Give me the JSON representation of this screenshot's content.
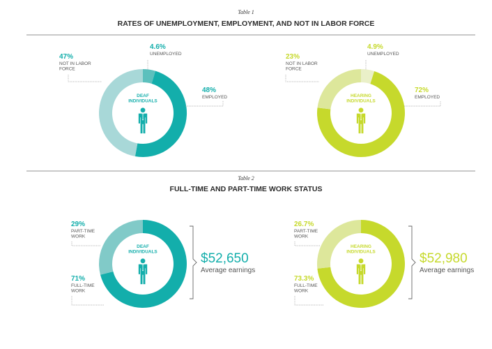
{
  "colors": {
    "deaf_dark": "#13aeab",
    "deaf_light": "#a8d8d8",
    "deaf_mid": "#81cac8",
    "deaf_sliver": "#5cc0bd",
    "hearing_dark": "#c6d92c",
    "hearing_light": "#dde79b",
    "hearing_sliver": "#eaf0c8",
    "text": "#2b2b2b",
    "rule": "#6d6d6d"
  },
  "icon": "person-icon",
  "chart_data": [
    {
      "type": "pie",
      "table_label": "Table 1",
      "title": "RATES OF UNEMPLOYMENT, EMPLOYMENT, AND NOT IN LABOR FORCE",
      "charts": [
        {
          "group": "DEAF INDIVIDUALS",
          "group_lines": [
            "DEAF",
            "INDIVIDUALS"
          ],
          "slices": [
            {
              "label": "UNEMPLOYED",
              "label_lines": [
                "UNEMPLOYED"
              ],
              "value": 4.6,
              "pct_text": "4.6%"
            },
            {
              "label": "EMPLOYED",
              "label_lines": [
                "EMPLOYED"
              ],
              "value": 48,
              "pct_text": "48%"
            },
            {
              "label": "NOT IN LABOR FORCE",
              "label_lines": [
                "NOT IN LABOR",
                "FORCE"
              ],
              "value": 47,
              "pct_text": "47%"
            }
          ]
        },
        {
          "group": "HEARING INDIVIDUALS",
          "group_lines": [
            "HEARING",
            "INDIVIDUALS"
          ],
          "slices": [
            {
              "label": "UNEMPLOYED",
              "label_lines": [
                "UNEMPLOYED"
              ],
              "value": 4.9,
              "pct_text": "4.9%"
            },
            {
              "label": "EMPLOYED",
              "label_lines": [
                "EMPLOYED"
              ],
              "value": 72,
              "pct_text": "72%"
            },
            {
              "label": "NOT IN LABOR FORCE",
              "label_lines": [
                "NOT IN LABOR",
                "FORCE"
              ],
              "value": 23,
              "pct_text": "23%"
            }
          ]
        }
      ]
    },
    {
      "type": "pie",
      "table_label": "Table 2",
      "title": "FULL-TIME AND PART-TIME WORK STATUS",
      "charts": [
        {
          "group": "DEAF INDIVIDUALS",
          "group_lines": [
            "DEAF",
            "INDIVIDUALS"
          ],
          "slices": [
            {
              "label": "FULL-TIME WORK",
              "label_lines": [
                "FULL-TIME",
                "WORK"
              ],
              "value": 71,
              "pct_text": "71%"
            },
            {
              "label": "PART-TIME WORK",
              "label_lines": [
                "PART-TIME",
                "WORK"
              ],
              "value": 29,
              "pct_text": "29%"
            }
          ],
          "earnings": "$52,650",
          "earnings_label": "Average earnings"
        },
        {
          "group": "HEARING INDIVIDUALS",
          "group_lines": [
            "HEARING",
            "INDIVIDUALS"
          ],
          "slices": [
            {
              "label": "FULL-TIME WORK",
              "label_lines": [
                "FULL-TIME",
                "WORK"
              ],
              "value": 73.3,
              "pct_text": "73.3%"
            },
            {
              "label": "PART-TIME WORK",
              "label_lines": [
                "PART-TIME",
                "WORK"
              ],
              "value": 26.7,
              "pct_text": "26.7%"
            }
          ],
          "earnings": "$52,980",
          "earnings_label": "Average earnings"
        }
      ]
    }
  ]
}
